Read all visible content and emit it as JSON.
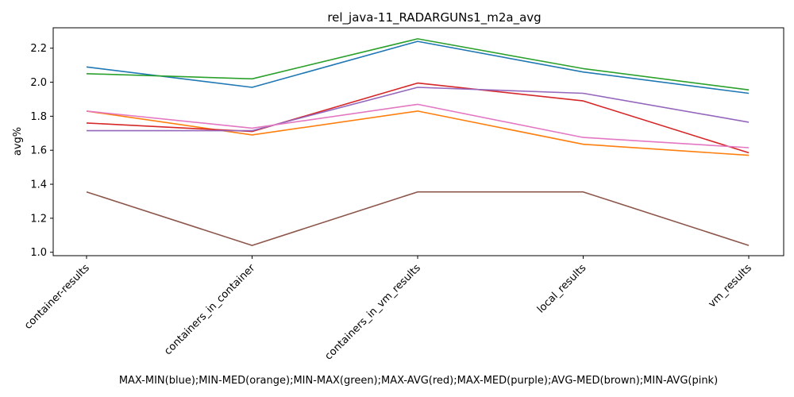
{
  "chart_data": {
    "type": "line",
    "title": "rel_java-11_RADARGUNs1_m2a_avg",
    "xlabel": "MAX-MIN(blue);MIN-MED(orange);MIN-MAX(green);MAX-AVG(red);MAX-MED(purple);AVG-MED(brown);MIN-AVG(pink)",
    "ylabel": "avg%",
    "categories": [
      "container-results",
      "containers_in_container",
      "containers_in_vm_results",
      "local_results",
      "vm_results"
    ],
    "ylim": [
      0.98,
      2.32
    ],
    "yticks": [
      1.0,
      1.2,
      1.4,
      1.6,
      1.8,
      2.0,
      2.2
    ],
    "yticks_text": [
      "1.0",
      "1.2",
      "1.4",
      "1.6",
      "1.8",
      "2.0",
      "2.2"
    ],
    "grid": false,
    "legend": "none",
    "series": [
      {
        "color": "#1f77b4",
        "values": [
          2.09,
          1.97,
          2.24,
          2.06,
          1.935
        ]
      },
      {
        "color": "#ff7f0e",
        "values": [
          1.83,
          1.69,
          1.83,
          1.635,
          1.57
        ]
      },
      {
        "color": "#2ca02c",
        "values": [
          2.05,
          2.02,
          2.255,
          2.08,
          1.955
        ]
      },
      {
        "color": "#d62728",
        "values": [
          1.76,
          1.71,
          1.995,
          1.89,
          1.585
        ]
      },
      {
        "color": "#9467bd",
        "values": [
          1.715,
          1.715,
          1.97,
          1.935,
          1.765
        ]
      },
      {
        "color": "#8c564b",
        "values": [
          1.355,
          1.04,
          1.355,
          1.355,
          1.04
        ]
      },
      {
        "color": "#e377c2",
        "values": [
          1.83,
          1.73,
          1.87,
          1.675,
          1.615
        ]
      }
    ]
  }
}
